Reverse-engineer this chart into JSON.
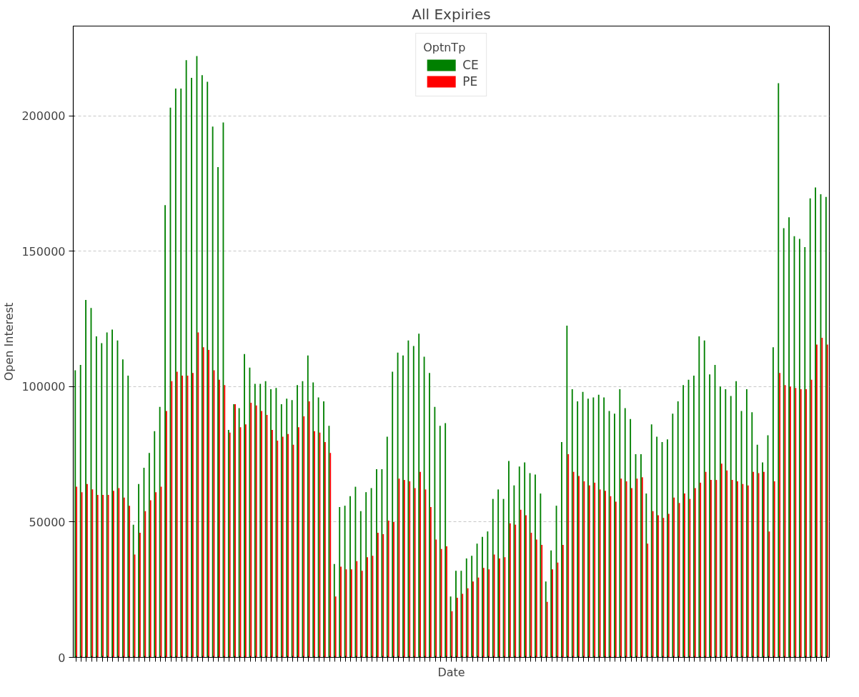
{
  "chart_data": {
    "type": "bar",
    "title": "All Expiries",
    "xlabel": "Date",
    "ylabel": "Open Interest",
    "legend_title": "OptnTp",
    "legend": "top",
    "grid": "y",
    "tick_labels": "y",
    "categories": [
      null,
      null,
      null,
      null,
      null,
      null,
      null,
      null,
      null,
      null,
      null,
      null,
      null,
      null,
      null,
      null,
      null,
      null,
      null,
      null,
      null,
      null,
      null,
      null,
      null,
      null,
      null,
      null,
      null,
      null,
      null,
      null,
      null,
      null,
      null,
      null,
      null,
      null,
      null,
      null,
      null,
      null,
      null,
      null,
      null,
      null,
      null,
      null,
      null,
      null,
      null,
      null,
      null,
      null,
      null,
      null,
      null,
      null,
      null,
      null,
      null,
      null,
      null,
      null,
      null,
      null,
      null,
      null,
      null,
      null,
      null,
      null,
      null,
      null,
      null,
      null,
      null,
      null,
      null,
      null,
      null,
      null,
      null,
      null,
      null,
      null,
      null,
      null,
      null,
      null,
      null,
      null,
      null,
      null,
      null,
      null,
      null,
      null,
      null,
      null,
      null,
      null,
      null,
      null,
      null,
      null,
      null,
      null,
      null,
      null,
      null,
      null,
      null,
      null,
      null,
      null,
      null,
      null,
      null,
      null,
      null,
      null,
      null,
      null,
      null,
      null,
      null,
      null,
      null,
      null,
      null,
      null,
      null,
      null,
      null,
      null,
      null,
      null,
      null,
      null,
      null,
      null,
      null
    ],
    "ylim": [
      0,
      233100
    ],
    "yticks": [
      0,
      50000,
      100000,
      150000,
      200000
    ],
    "series": [
      {
        "name": "CE",
        "color": "#008000",
        "values": [
          106000,
          108000,
          132000,
          129000,
          118500,
          116000,
          120000,
          121000,
          117000,
          110000,
          104000,
          49000,
          64000,
          70000,
          75500,
          83500,
          92500,
          167000,
          203000,
          210000,
          210000,
          220500,
          214000,
          222000,
          215000,
          212500,
          196000,
          181000,
          197500,
          84000,
          93500,
          92000,
          112000,
          107000,
          101000,
          101000,
          102000,
          99000,
          99500,
          93500,
          95500,
          95000,
          100500,
          102000,
          111500,
          101500,
          96000,
          94500,
          85500,
          34500,
          55500,
          56000,
          59500,
          63000,
          54000,
          61000,
          62500,
          69500,
          69500,
          81500,
          105500,
          112500,
          111500,
          117000,
          115000,
          119500,
          111000,
          105000,
          92500,
          85500,
          86500,
          22500,
          32000,
          32000,
          36500,
          37500,
          42000,
          44500,
          46500,
          58500,
          62000,
          58500,
          72500,
          63500,
          70500,
          72000,
          68000,
          67500,
          60500,
          28000,
          39500,
          56000,
          79500,
          122500,
          99000,
          94500,
          98000,
          95500,
          96000,
          97000,
          96000,
          91000,
          90000,
          99000,
          92000,
          88000,
          75000,
          75000,
          60500,
          86000,
          81500,
          79500,
          80500,
          90000,
          94500,
          100500,
          102500,
          104000,
          118500,
          117000,
          104500,
          108000,
          100000,
          99000,
          96500,
          102000,
          91000,
          99000,
          90500,
          78500,
          72000,
          82000,
          114500,
          212000,
          158500,
          162500,
          155500,
          154500,
          151500,
          169500,
          173500,
          171000,
          170000
        ]
      },
      {
        "name": "PE",
        "color": "#ff0000",
        "values": [
          63000,
          61000,
          64000,
          62000,
          60000,
          60000,
          60000,
          61500,
          62500,
          59000,
          56000,
          38000,
          46000,
          54000,
          58000,
          61000,
          63000,
          91000,
          102000,
          105500,
          104000,
          104000,
          105000,
          120000,
          114500,
          113500,
          106000,
          102500,
          100500,
          83000,
          93500,
          85000,
          86000,
          94000,
          93000,
          91000,
          89500,
          84000,
          80000,
          81500,
          82500,
          78500,
          85000,
          89000,
          94500,
          83500,
          83000,
          79500,
          75500,
          22500,
          33500,
          32500,
          32500,
          35500,
          32000,
          37000,
          37500,
          46000,
          45500,
          50500,
          50000,
          66000,
          65500,
          65000,
          62500,
          68500,
          62000,
          55500,
          43500,
          40000,
          41000,
          17000,
          22000,
          23500,
          25500,
          28000,
          29500,
          33000,
          32500,
          38000,
          36500,
          37000,
          49500,
          49000,
          54500,
          52500,
          46000,
          43500,
          41500,
          20500,
          32500,
          35000,
          41500,
          75000,
          68500,
          67000,
          65000,
          63500,
          64500,
          62000,
          61500,
          59500,
          57500,
          66000,
          65000,
          62500,
          66000,
          66500,
          42000,
          54000,
          52500,
          51500,
          53000,
          59000,
          57000,
          60500,
          58500,
          62500,
          64500,
          68500,
          65500,
          65500,
          71500,
          69000,
          65500,
          65000,
          64000,
          63500,
          68500,
          68000,
          68500,
          46500,
          65000,
          105000,
          100500,
          100000,
          99500,
          99000,
          99000,
          102500,
          115500,
          118000,
          115500
        ]
      }
    ]
  }
}
